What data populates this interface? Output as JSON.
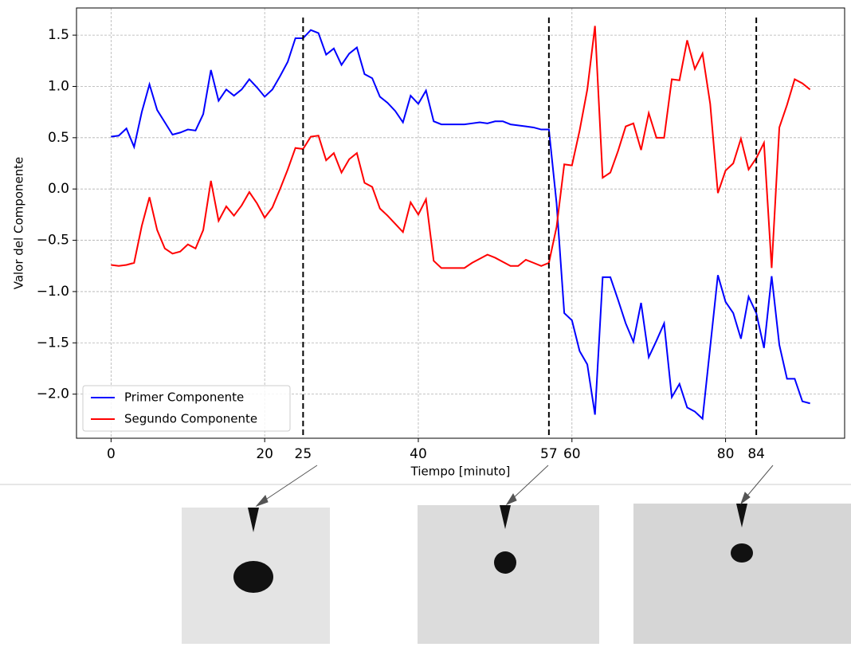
{
  "chart_data": {
    "type": "line",
    "xlabel": "Tiempo [minuto]",
    "ylabel": "Valor del Componente",
    "x": [
      0,
      1,
      2,
      3,
      4,
      5,
      6,
      7,
      8,
      9,
      10,
      11,
      12,
      13,
      14,
      15,
      16,
      17,
      18,
      19,
      20,
      21,
      22,
      23,
      24,
      25,
      26,
      27,
      28,
      29,
      30,
      31,
      32,
      33,
      34,
      35,
      36,
      37,
      38,
      39,
      40,
      41,
      42,
      43,
      44,
      45,
      46,
      47,
      48,
      49,
      50,
      51,
      52,
      53,
      54,
      55,
      56,
      57,
      58,
      59,
      60,
      61,
      62,
      63,
      64,
      65,
      66,
      67,
      68,
      69,
      70,
      71,
      72,
      73,
      74,
      75,
      76,
      77,
      78,
      79,
      80,
      81,
      82,
      83,
      84,
      85,
      86,
      87,
      88,
      89,
      90,
      91
    ],
    "series": [
      {
        "name": "Primer Componente",
        "color": "#0000ff",
        "values": [
          0.51,
          0.52,
          0.59,
          0.41,
          0.75,
          1.02,
          0.77,
          0.65,
          0.53,
          0.55,
          0.58,
          0.57,
          0.73,
          1.16,
          0.86,
          0.97,
          0.91,
          0.97,
          1.07,
          0.99,
          0.9,
          0.97,
          1.1,
          1.24,
          1.47,
          1.47,
          1.55,
          1.52,
          1.31,
          1.37,
          1.21,
          1.32,
          1.38,
          1.12,
          1.08,
          0.9,
          0.84,
          0.76,
          0.65,
          0.91,
          0.83,
          0.96,
          0.66,
          0.63,
          0.63,
          0.63,
          0.63,
          0.64,
          0.65,
          0.64,
          0.66,
          0.66,
          0.63,
          0.62,
          0.61,
          0.6,
          0.58,
          0.58,
          -0.14,
          -1.21,
          -1.28,
          -1.58,
          -1.71,
          -2.2,
          -0.86,
          -0.86,
          -1.08,
          -1.31,
          -1.49,
          -1.11,
          -1.64,
          -1.48,
          -1.31,
          -2.03,
          -1.9,
          -2.13,
          -2.17,
          -2.24,
          -1.54,
          -0.84,
          -1.1,
          -1.21,
          -1.46,
          -1.05,
          -1.21,
          -1.55,
          -0.85,
          -1.52,
          -1.85,
          -1.85,
          -2.07,
          -2.09
        ]
      },
      {
        "name": "Segundo Componente",
        "color": "#ff0000",
        "values": [
          -0.74,
          -0.75,
          -0.74,
          -0.72,
          -0.36,
          -0.08,
          -0.4,
          -0.58,
          -0.63,
          -0.61,
          -0.54,
          -0.58,
          -0.4,
          0.08,
          -0.31,
          -0.17,
          -0.26,
          -0.16,
          -0.03,
          -0.14,
          -0.28,
          -0.18,
          0,
          0.19,
          0.4,
          0.39,
          0.51,
          0.52,
          0.28,
          0.35,
          0.16,
          0.29,
          0.35,
          0.06,
          0.02,
          -0.19,
          -0.26,
          -0.34,
          -0.42,
          -0.13,
          -0.25,
          -0.1,
          -0.7,
          -0.77,
          -0.77,
          -0.77,
          -0.77,
          -0.72,
          -0.68,
          -0.64,
          -0.67,
          -0.71,
          -0.75,
          -0.75,
          -0.69,
          -0.72,
          -0.75,
          -0.72,
          -0.37,
          0.24,
          0.23,
          0.57,
          0.97,
          1.59,
          0.11,
          0.16,
          0.37,
          0.61,
          0.64,
          0.38,
          0.74,
          0.5,
          0.5,
          1.07,
          1.06,
          1.45,
          1.17,
          1.32,
          0.83,
          -0.04,
          0.18,
          0.25,
          0.49,
          0.19,
          0.3,
          0.45,
          -0.77,
          0.6,
          0.82,
          1.07,
          1.03,
          0.97
        ]
      }
    ],
    "vlines": [
      25,
      57,
      84
    ],
    "xlim": [
      -4.5,
      95.5
    ],
    "ylim": [
      -2.43,
      1.765
    ],
    "xticks": [
      0,
      20,
      40,
      60,
      80
    ],
    "yticks": [
      {
        "value": -2,
        "label": "−2.0"
      },
      {
        "value": -1.5,
        "label": "−1.5"
      },
      {
        "value": -1,
        "label": "−1.0"
      },
      {
        "value": -0.5,
        "label": "−0.5"
      },
      {
        "value": 0,
        "label": "0.0"
      },
      0.5,
      {
        "value": 1,
        "label": "1.0"
      },
      1.5
    ],
    "grid": true,
    "legend": "lower left"
  }
}
